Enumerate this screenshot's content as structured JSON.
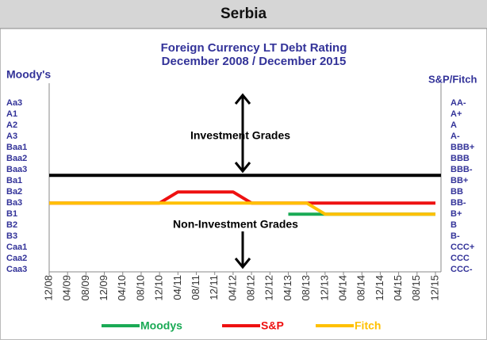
{
  "header": "Serbia",
  "chart_data": {
    "type": "line",
    "title": "Foreign Currency LT Debt Rating",
    "subtitle": "December 2008 / December 2015",
    "y_label": "Moody's",
    "y2_label": "S&P/Fitch",
    "categories": [
      "12/08",
      "04/09",
      "08/09",
      "12/09",
      "04/10",
      "08/10",
      "12/10",
      "04/11",
      "08/11",
      "12/11",
      "04/12",
      "08/12",
      "12/12",
      "04/13",
      "08/13",
      "12/13",
      "04/14",
      "08/14",
      "12/14",
      "04/15",
      "08/15",
      "12/15"
    ],
    "ylim": [
      0.8,
      17.8
    ],
    "yticks": [
      {
        "value": 16,
        "label": "Aa3"
      },
      {
        "value": 15,
        "label": "A1"
      },
      {
        "value": 14,
        "label": "A2"
      },
      {
        "value": 13,
        "label": "A3"
      },
      {
        "value": 12,
        "label": "Baa1"
      },
      {
        "value": 11,
        "label": "Baa2"
      },
      {
        "value": 10,
        "label": "Baa3"
      },
      {
        "value": 9,
        "label": "Ba1"
      },
      {
        "value": 8,
        "label": "Ba2"
      },
      {
        "value": 7,
        "label": "Ba3"
      },
      {
        "value": 6,
        "label": "B1"
      },
      {
        "value": 5,
        "label": "B2"
      },
      {
        "value": 4,
        "label": "B3"
      },
      {
        "value": 3,
        "label": "Caa1"
      },
      {
        "value": 2,
        "label": "Caa2"
      },
      {
        "value": 1,
        "label": "Caa3"
      }
    ],
    "y2lim": [
      0.8,
      17.8
    ],
    "y2ticks": [
      {
        "value": 16,
        "label": "AA-"
      },
      {
        "value": 15,
        "label": "A+"
      },
      {
        "value": 14,
        "label": "A"
      },
      {
        "value": 13,
        "label": "A-"
      },
      {
        "value": 12,
        "label": "BBB+"
      },
      {
        "value": 11,
        "label": "BBB"
      },
      {
        "value": 10,
        "label": "BBB-"
      },
      {
        "value": 9,
        "label": "BB+"
      },
      {
        "value": 8,
        "label": "BB"
      },
      {
        "value": 7,
        "label": "BB-"
      },
      {
        "value": 6,
        "label": "B+"
      },
      {
        "value": 5,
        "label": "B"
      },
      {
        "value": 4,
        "label": "B-"
      },
      {
        "value": 3,
        "label": "CCC+"
      },
      {
        "value": 2,
        "label": "CCC"
      },
      {
        "value": 1,
        "label": "CCC-"
      }
    ],
    "reference_line": 9.5,
    "annotations": [
      "Investment Grades",
      "Non-Investment Grades"
    ],
    "series": [
      {
        "name": "Moodys",
        "color": "#1aaa55",
        "values": [
          null,
          null,
          null,
          null,
          null,
          null,
          null,
          null,
          null,
          null,
          null,
          null,
          null,
          6,
          6,
          6,
          6,
          6,
          6,
          6,
          6,
          6
        ]
      },
      {
        "name": "S&P",
        "color": "#ee1111",
        "values": [
          7,
          7,
          7,
          7,
          7,
          7,
          7,
          8,
          8,
          8,
          8,
          7,
          7,
          7,
          7,
          7,
          7,
          7,
          7,
          7,
          7,
          7
        ]
      },
      {
        "name": "Fitch",
        "color": "#ffc000",
        "values": [
          7,
          7,
          7,
          7,
          7,
          7,
          7,
          7,
          7,
          7,
          7,
          7,
          7,
          7,
          7,
          6,
          6,
          6,
          6,
          6,
          6,
          6
        ]
      }
    ]
  }
}
